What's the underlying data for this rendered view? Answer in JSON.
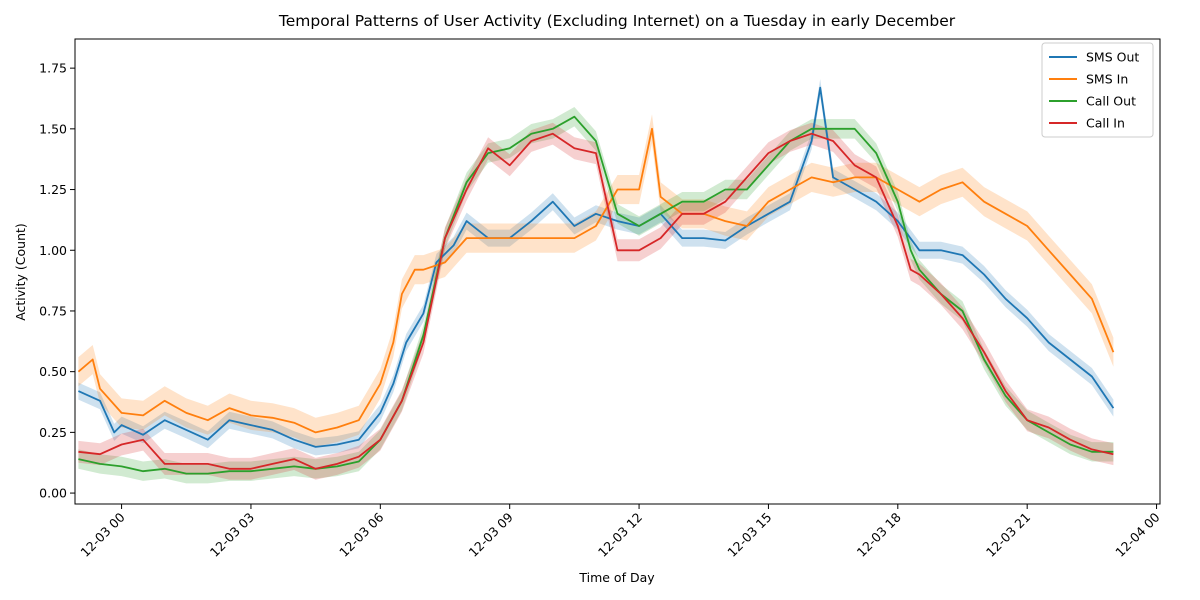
{
  "chart_data": {
    "type": "line",
    "title": "Temporal Patterns of User Activity (Excluding Internet) on a Tuesday in early December",
    "xlabel": "Time of Day",
    "ylabel": "Activity (Count)",
    "x_unit": "hours relative to 12-03 00:00",
    "xlim": [
      -1.08,
      24.08
    ],
    "ylim": [
      -0.045,
      1.87
    ],
    "x_ticks": [
      {
        "value": 0,
        "label": "12-03 00"
      },
      {
        "value": 3,
        "label": "12-03 03"
      },
      {
        "value": 6,
        "label": "12-03 06"
      },
      {
        "value": 9,
        "label": "12-03 09"
      },
      {
        "value": 12,
        "label": "12-03 12"
      },
      {
        "value": 15,
        "label": "12-03 15"
      },
      {
        "value": 18,
        "label": "12-03 18"
      },
      {
        "value": 21,
        "label": "12-03 21"
      },
      {
        "value": 24,
        "label": "12-04 00"
      }
    ],
    "y_ticks": [
      {
        "value": 0.0,
        "label": "0.00"
      },
      {
        "value": 0.25,
        "label": "0.25"
      },
      {
        "value": 0.5,
        "label": "0.50"
      },
      {
        "value": 0.75,
        "label": "0.75"
      },
      {
        "value": 1.0,
        "label": "1.00"
      },
      {
        "value": 1.25,
        "label": "1.25"
      },
      {
        "value": 1.5,
        "label": "1.50"
      },
      {
        "value": 1.75,
        "label": "1.75"
      }
    ],
    "grid": false,
    "legend_position": "top-right",
    "confidence_band": true,
    "series": [
      {
        "name": "SMS Out",
        "color": "#1f77b4",
        "band": 0.035,
        "points": [
          [
            -1,
            0.42
          ],
          [
            -0.5,
            0.38
          ],
          [
            -0.17,
            0.25
          ],
          [
            0,
            0.28
          ],
          [
            0.5,
            0.24
          ],
          [
            1,
            0.3
          ],
          [
            1.5,
            0.26
          ],
          [
            2,
            0.22
          ],
          [
            2.5,
            0.3
          ],
          [
            3,
            0.28
          ],
          [
            3.5,
            0.26
          ],
          [
            4,
            0.22
          ],
          [
            4.5,
            0.19
          ],
          [
            5,
            0.2
          ],
          [
            5.5,
            0.22
          ],
          [
            6,
            0.33
          ],
          [
            6.3,
            0.45
          ],
          [
            6.6,
            0.62
          ],
          [
            7,
            0.74
          ],
          [
            7.3,
            0.95
          ],
          [
            7.7,
            1.02
          ],
          [
            8,
            1.12
          ],
          [
            8.5,
            1.05
          ],
          [
            9,
            1.05
          ],
          [
            9.5,
            1.12
          ],
          [
            10,
            1.2
          ],
          [
            10.5,
            1.1
          ],
          [
            11,
            1.15
          ],
          [
            11.5,
            1.12
          ],
          [
            12,
            1.1
          ],
          [
            12.5,
            1.15
          ],
          [
            13,
            1.05
          ],
          [
            13.5,
            1.05
          ],
          [
            14,
            1.04
          ],
          [
            14.5,
            1.1
          ],
          [
            15,
            1.15
          ],
          [
            15.5,
            1.2
          ],
          [
            16,
            1.45
          ],
          [
            16.2,
            1.67
          ],
          [
            16.5,
            1.3
          ],
          [
            17,
            1.25
          ],
          [
            17.5,
            1.2
          ],
          [
            18,
            1.12
          ],
          [
            18.5,
            1.0
          ],
          [
            19,
            1.0
          ],
          [
            19.5,
            0.98
          ],
          [
            20,
            0.9
          ],
          [
            20.5,
            0.8
          ],
          [
            21,
            0.72
          ],
          [
            21.5,
            0.62
          ],
          [
            22,
            0.55
          ],
          [
            22.5,
            0.48
          ],
          [
            23,
            0.35
          ]
        ]
      },
      {
        "name": "SMS In",
        "color": "#ff7f0e",
        "band": 0.06,
        "points": [
          [
            -1,
            0.5
          ],
          [
            -0.67,
            0.55
          ],
          [
            -0.5,
            0.43
          ],
          [
            0,
            0.33
          ],
          [
            0.5,
            0.32
          ],
          [
            1,
            0.38
          ],
          [
            1.5,
            0.33
          ],
          [
            2,
            0.3
          ],
          [
            2.5,
            0.35
          ],
          [
            3,
            0.32
          ],
          [
            3.5,
            0.31
          ],
          [
            4,
            0.29
          ],
          [
            4.5,
            0.25
          ],
          [
            5,
            0.27
          ],
          [
            5.5,
            0.3
          ],
          [
            6,
            0.45
          ],
          [
            6.3,
            0.62
          ],
          [
            6.5,
            0.82
          ],
          [
            6.8,
            0.92
          ],
          [
            7,
            0.92
          ],
          [
            7.5,
            0.95
          ],
          [
            8,
            1.05
          ],
          [
            8.5,
            1.05
          ],
          [
            9,
            1.05
          ],
          [
            9.5,
            1.05
          ],
          [
            10,
            1.05
          ],
          [
            10.5,
            1.05
          ],
          [
            11,
            1.1
          ],
          [
            11.5,
            1.25
          ],
          [
            12,
            1.25
          ],
          [
            12.3,
            1.5
          ],
          [
            12.5,
            1.22
          ],
          [
            13,
            1.15
          ],
          [
            13.5,
            1.15
          ],
          [
            14,
            1.12
          ],
          [
            14.5,
            1.1
          ],
          [
            15,
            1.2
          ],
          [
            15.5,
            1.25
          ],
          [
            16,
            1.3
          ],
          [
            16.5,
            1.28
          ],
          [
            17,
            1.3
          ],
          [
            17.5,
            1.3
          ],
          [
            18,
            1.25
          ],
          [
            18.5,
            1.2
          ],
          [
            19,
            1.25
          ],
          [
            19.5,
            1.28
          ],
          [
            20,
            1.2
          ],
          [
            20.5,
            1.15
          ],
          [
            21,
            1.1
          ],
          [
            21.5,
            1.0
          ],
          [
            22,
            0.9
          ],
          [
            22.5,
            0.8
          ],
          [
            23,
            0.58
          ]
        ]
      },
      {
        "name": "Call Out",
        "color": "#2ca02c",
        "band": 0.04,
        "points": [
          [
            -1,
            0.14
          ],
          [
            -0.5,
            0.12
          ],
          [
            0,
            0.11
          ],
          [
            0.5,
            0.09
          ],
          [
            1,
            0.1
          ],
          [
            1.5,
            0.08
          ],
          [
            2,
            0.08
          ],
          [
            2.5,
            0.09
          ],
          [
            3,
            0.09
          ],
          [
            3.5,
            0.1
          ],
          [
            4,
            0.11
          ],
          [
            4.5,
            0.1
          ],
          [
            5,
            0.11
          ],
          [
            5.5,
            0.13
          ],
          [
            6,
            0.22
          ],
          [
            6.5,
            0.38
          ],
          [
            7,
            0.65
          ],
          [
            7.5,
            1.05
          ],
          [
            8,
            1.28
          ],
          [
            8.5,
            1.4
          ],
          [
            9,
            1.42
          ],
          [
            9.5,
            1.48
          ],
          [
            10,
            1.5
          ],
          [
            10.5,
            1.55
          ],
          [
            11,
            1.45
          ],
          [
            11.5,
            1.15
          ],
          [
            12,
            1.1
          ],
          [
            12.5,
            1.15
          ],
          [
            13,
            1.2
          ],
          [
            13.5,
            1.2
          ],
          [
            14,
            1.25
          ],
          [
            14.5,
            1.25
          ],
          [
            15,
            1.35
          ],
          [
            15.5,
            1.45
          ],
          [
            16,
            1.5
          ],
          [
            16.5,
            1.5
          ],
          [
            17,
            1.5
          ],
          [
            17.5,
            1.4
          ],
          [
            18,
            1.2
          ],
          [
            18.3,
            1.0
          ],
          [
            18.5,
            0.92
          ],
          [
            19,
            0.82
          ],
          [
            19.5,
            0.75
          ],
          [
            20,
            0.55
          ],
          [
            20.5,
            0.4
          ],
          [
            21,
            0.3
          ],
          [
            21.5,
            0.25
          ],
          [
            22,
            0.2
          ],
          [
            22.5,
            0.17
          ],
          [
            23,
            0.17
          ]
        ]
      },
      {
        "name": "Call In",
        "color": "#d62728",
        "band": 0.045,
        "points": [
          [
            -1,
            0.17
          ],
          [
            -0.5,
            0.16
          ],
          [
            0,
            0.2
          ],
          [
            0.5,
            0.22
          ],
          [
            1,
            0.12
          ],
          [
            1.5,
            0.12
          ],
          [
            2,
            0.12
          ],
          [
            2.5,
            0.1
          ],
          [
            3,
            0.1
          ],
          [
            3.5,
            0.12
          ],
          [
            4,
            0.14
          ],
          [
            4.5,
            0.1
          ],
          [
            5,
            0.12
          ],
          [
            5.5,
            0.15
          ],
          [
            6,
            0.22
          ],
          [
            6.5,
            0.38
          ],
          [
            7,
            0.62
          ],
          [
            7.5,
            1.05
          ],
          [
            8,
            1.25
          ],
          [
            8.5,
            1.42
          ],
          [
            9,
            1.35
          ],
          [
            9.5,
            1.45
          ],
          [
            10,
            1.48
          ],
          [
            10.5,
            1.42
          ],
          [
            11,
            1.4
          ],
          [
            11.5,
            1.0
          ],
          [
            12,
            1.0
          ],
          [
            12.5,
            1.05
          ],
          [
            13,
            1.15
          ],
          [
            13.5,
            1.15
          ],
          [
            14,
            1.2
          ],
          [
            14.5,
            1.3
          ],
          [
            15,
            1.4
          ],
          [
            15.5,
            1.45
          ],
          [
            16,
            1.48
          ],
          [
            16.5,
            1.45
          ],
          [
            17,
            1.35
          ],
          [
            17.5,
            1.3
          ],
          [
            18,
            1.1
          ],
          [
            18.3,
            0.92
          ],
          [
            18.5,
            0.9
          ],
          [
            19,
            0.82
          ],
          [
            19.5,
            0.72
          ],
          [
            20,
            0.58
          ],
          [
            20.5,
            0.42
          ],
          [
            21,
            0.3
          ],
          [
            21.5,
            0.27
          ],
          [
            22,
            0.22
          ],
          [
            22.5,
            0.18
          ],
          [
            23,
            0.16
          ]
        ]
      }
    ]
  }
}
